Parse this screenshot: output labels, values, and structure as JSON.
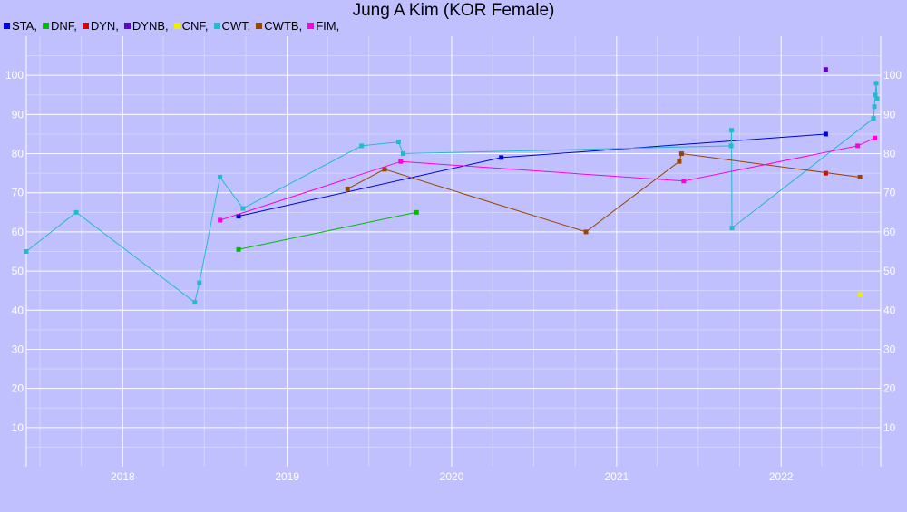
{
  "chart_data": {
    "type": "line",
    "title": "Jung A Kim (KOR Female)",
    "xlabel": "",
    "ylabel": "",
    "x_ticks": [
      "2018",
      "2019",
      "2020",
      "2021",
      "2022"
    ],
    "x_range": [
      "2017-06-01",
      "2022-08-10"
    ],
    "y_ticks": [
      10,
      20,
      30,
      40,
      50,
      60,
      70,
      80,
      90,
      100
    ],
    "ylim": [
      0,
      110
    ],
    "grid": true,
    "legend_position": "top-left",
    "series": [
      {
        "name": "STA,",
        "color": "#0000dd",
        "points": [
          [
            "2018-09-15",
            64
          ],
          [
            "2020-04-20",
            79
          ],
          [
            "2022-04-10",
            85
          ]
        ]
      },
      {
        "name": "DNF,",
        "color": "#00bb00",
        "points": [
          [
            "2018-09-15",
            55.5
          ],
          [
            "2019-10-15",
            65
          ]
        ]
      },
      {
        "name": "DYN,",
        "color": "#dd0000",
        "points": [
          [
            "2022-04-10",
            75
          ]
        ]
      },
      {
        "name": "DYNB,",
        "color": "#6600cc",
        "points": [
          [
            "2022-04-10",
            101.5
          ]
        ]
      },
      {
        "name": "CNF,",
        "color": "#eeee00",
        "points": [
          [
            "2022-06-25",
            44
          ]
        ]
      },
      {
        "name": "CWT,",
        "color": "#22bbcc",
        "points": [
          [
            "2017-06-01",
            55
          ],
          [
            "2017-09-20",
            65
          ],
          [
            "2018-06-10",
            42
          ],
          [
            "2018-06-20",
            47
          ],
          [
            "2018-08-05",
            74
          ],
          [
            "2018-09-25",
            66
          ],
          [
            "2019-06-15",
            82
          ],
          [
            "2019-09-05",
            83
          ],
          [
            "2019-09-15",
            80
          ],
          [
            "2021-09-12",
            82
          ],
          [
            "2021-09-13",
            86
          ],
          [
            "2021-09-14",
            61
          ],
          [
            "2022-07-25",
            89
          ],
          [
            "2022-07-27",
            92
          ],
          [
            "2022-07-29",
            95
          ],
          [
            "2022-07-31",
            98
          ],
          [
            "2022-08-02",
            94
          ]
        ]
      },
      {
        "name": "CWTB,",
        "color": "#994400",
        "points": [
          [
            "2019-05-15",
            71
          ],
          [
            "2019-08-05",
            76
          ],
          [
            "2020-10-25",
            60
          ],
          [
            "2021-05-20",
            78
          ],
          [
            "2021-05-25",
            80
          ],
          [
            "2022-06-25",
            74
          ]
        ]
      },
      {
        "name": "FIM,",
        "color": "#ff00dd",
        "points": [
          [
            "2018-08-05",
            63
          ],
          [
            "2019-09-10",
            78
          ],
          [
            "2021-05-30",
            73
          ],
          [
            "2022-06-20",
            82
          ],
          [
            "2022-07-28",
            84
          ]
        ]
      }
    ]
  }
}
